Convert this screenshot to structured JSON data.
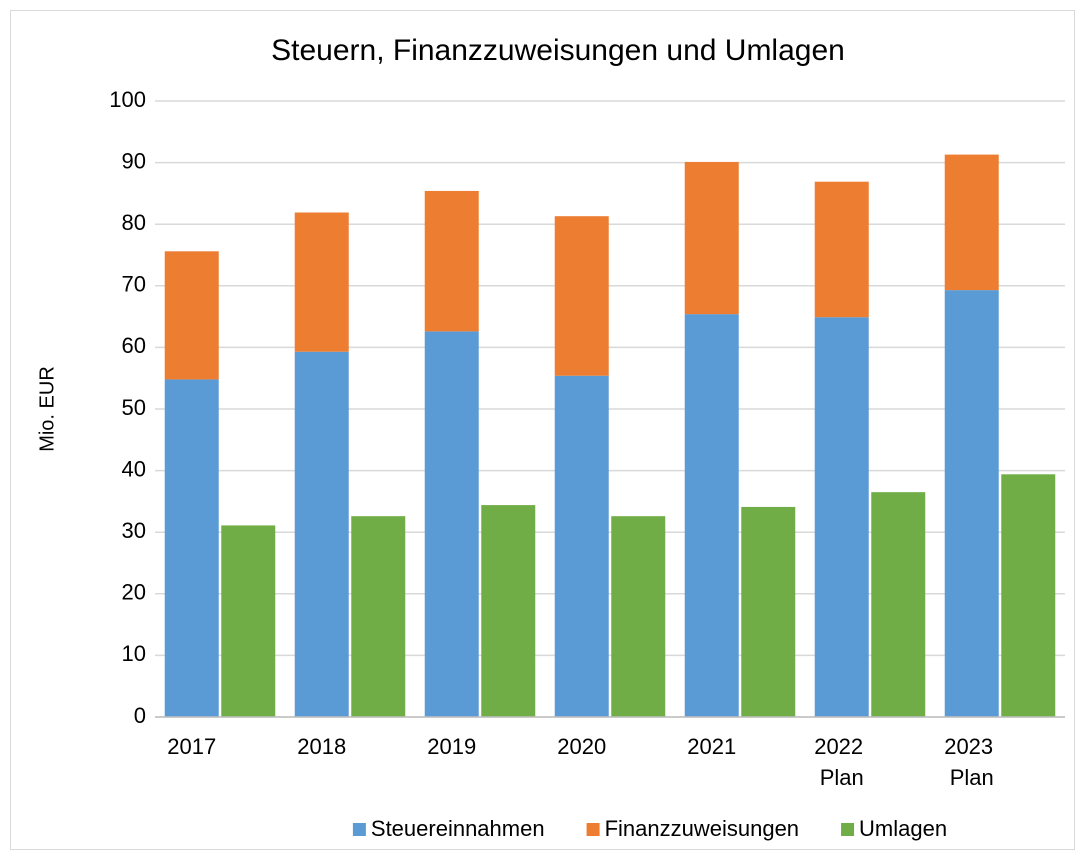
{
  "chart_data": {
    "type": "bar",
    "stacked": true,
    "title": "Steuern, Finanzzuweisungen und Umlagen",
    "y_label": "Mio. EUR",
    "categories": [
      "2017",
      "2018",
      "2019",
      "2020",
      "2021",
      "2022 Plan",
      "2023 Plan"
    ],
    "series": [
      {
        "name": "Steuereinnahmen",
        "color": "#5b9bd5",
        "stack": 0,
        "values": [
          54.8,
          59.3,
          62.6,
          55.4,
          65.4,
          64.9,
          69.3
        ]
      },
      {
        "name": "Finanzzuweisungen",
        "color": "#ed7d31",
        "stack": 0,
        "values": [
          20.8,
          22.6,
          22.8,
          25.9,
          24.7,
          22.0,
          22.0
        ]
      },
      {
        "name": "Umlagen",
        "color": "#70ad47",
        "stack": 1,
        "values": [
          31.1,
          32.6,
          34.4,
          32.6,
          34.1,
          36.5,
          39.4
        ]
      }
    ],
    "ylim": [
      0,
      100
    ],
    "yticks": [
      0,
      10,
      20,
      30,
      40,
      50,
      60,
      70,
      80,
      90,
      100
    ],
    "grid": true,
    "legend": "bottom"
  }
}
